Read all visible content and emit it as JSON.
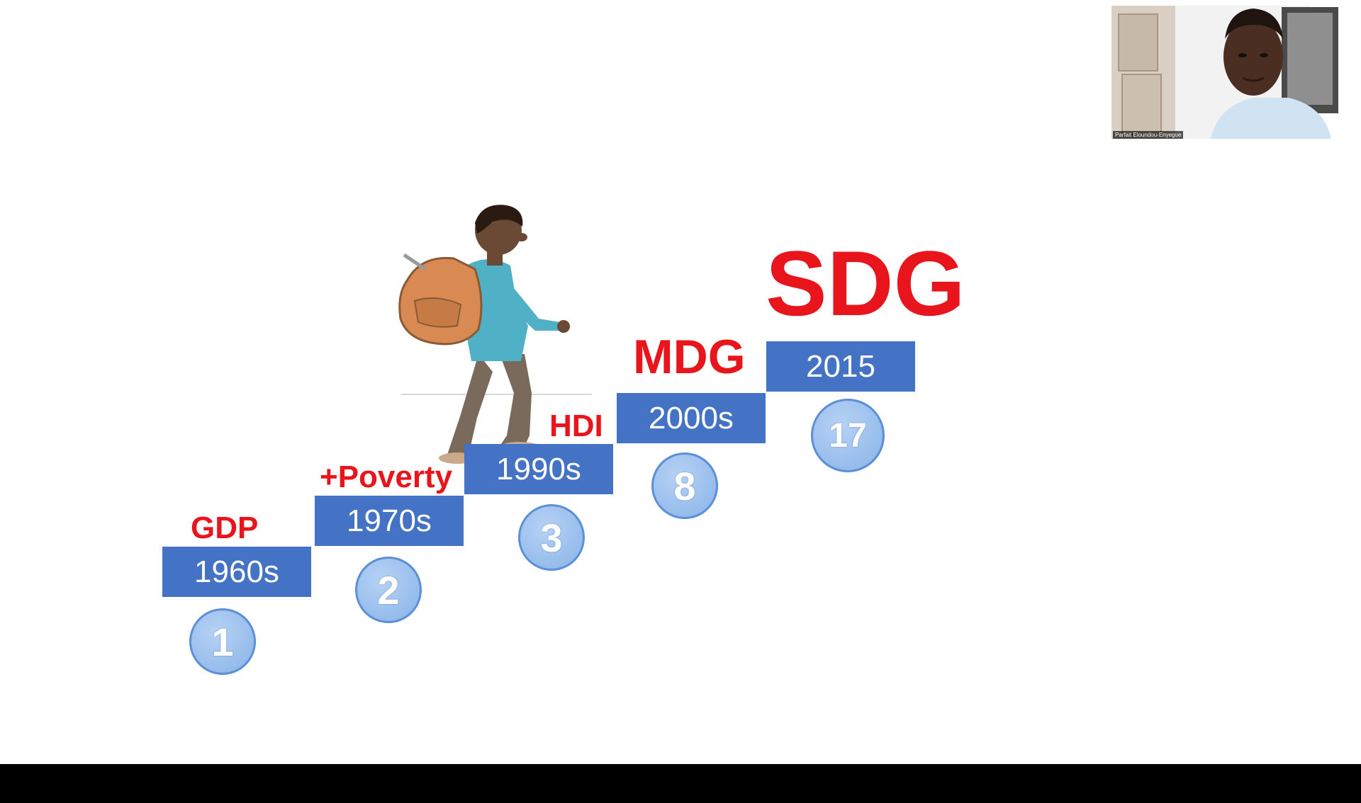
{
  "slide": {
    "steps": [
      {
        "year": "1960s",
        "label": "GDP",
        "count": "1"
      },
      {
        "year": "1970s",
        "label": "+Poverty",
        "count": "2"
      },
      {
        "year": "1990s",
        "label": "HDI",
        "count": "3"
      },
      {
        "year": "2000s",
        "label": "MDG",
        "count": "8"
      },
      {
        "year": "2015",
        "label": "SDG",
        "count": "17"
      }
    ],
    "colors": {
      "step_fill": "#4472c4",
      "label_red": "#e8161c",
      "badge_fill": "#9dc1ee"
    }
  },
  "webcam": {
    "participant_name": "Parfait Eloundou-Enyegue"
  }
}
